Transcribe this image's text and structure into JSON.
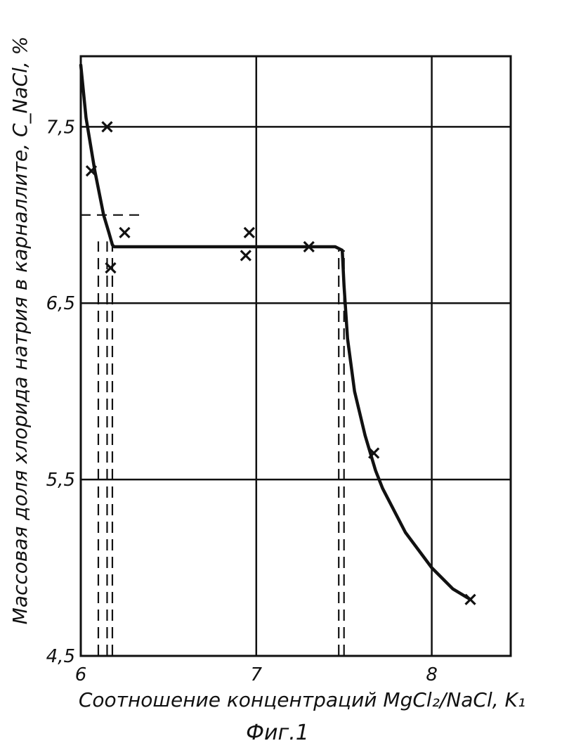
{
  "chart_data": {
    "type": "line",
    "title": "",
    "xlabel": "Соотношение концентраций MgCl₂/NaCl, K₁",
    "ylabel": "Массовая доля хлорида натрия в карналлите, C_NaCl, %",
    "caption": "Фиг.1",
    "xlim": [
      6,
      8.45
    ],
    "ylim": [
      4.5,
      7.9
    ],
    "x_ticks": [
      "6",
      "7",
      "8"
    ],
    "y_ticks": [
      "4,5",
      "5,5",
      "6,5",
      "7,5"
    ],
    "x_grid": [
      7,
      8
    ],
    "y_grid": [
      5.5,
      6.5,
      7.5
    ],
    "grid": true,
    "legend": "none",
    "series": [
      {
        "kind": "curve",
        "x": [
          6.0,
          6.03,
          6.08,
          6.13,
          6.16,
          6.18,
          6.19,
          7.0,
          7.45,
          7.49,
          7.5,
          7.52,
          7.56,
          7.62,
          7.68,
          7.72,
          7.85,
          8.0,
          8.12,
          8.22
        ],
        "y": [
          7.85,
          7.55,
          7.25,
          7.0,
          6.9,
          6.83,
          6.82,
          6.82,
          6.82,
          6.8,
          6.6,
          6.3,
          6.0,
          5.75,
          5.55,
          5.45,
          5.2,
          5.0,
          4.88,
          4.82
        ]
      },
      {
        "kind": "points",
        "x": [
          6.06,
          6.15,
          6.17,
          6.25,
          6.94,
          6.96,
          7.3,
          7.67,
          8.22
        ],
        "y": [
          7.25,
          7.5,
          6.7,
          6.9,
          6.77,
          6.9,
          6.82,
          5.65,
          4.82
        ]
      }
    ],
    "reference_lines": [
      {
        "orientation": "h",
        "y": 7.0,
        "x_from": 6.0,
        "x_to": 6.36
      },
      {
        "orientation": "v",
        "x": 6.1,
        "y_from": 4.5,
        "y_to": 6.85
      },
      {
        "orientation": "v",
        "x": 6.15,
        "y_from": 4.5,
        "y_to": 6.85
      },
      {
        "orientation": "v",
        "x": 6.18,
        "y_from": 4.5,
        "y_to": 6.85
      },
      {
        "orientation": "v",
        "x": 7.47,
        "y_from": 4.5,
        "y_to": 6.8
      },
      {
        "orientation": "v",
        "x": 7.5,
        "y_from": 4.5,
        "y_to": 6.8
      }
    ]
  }
}
